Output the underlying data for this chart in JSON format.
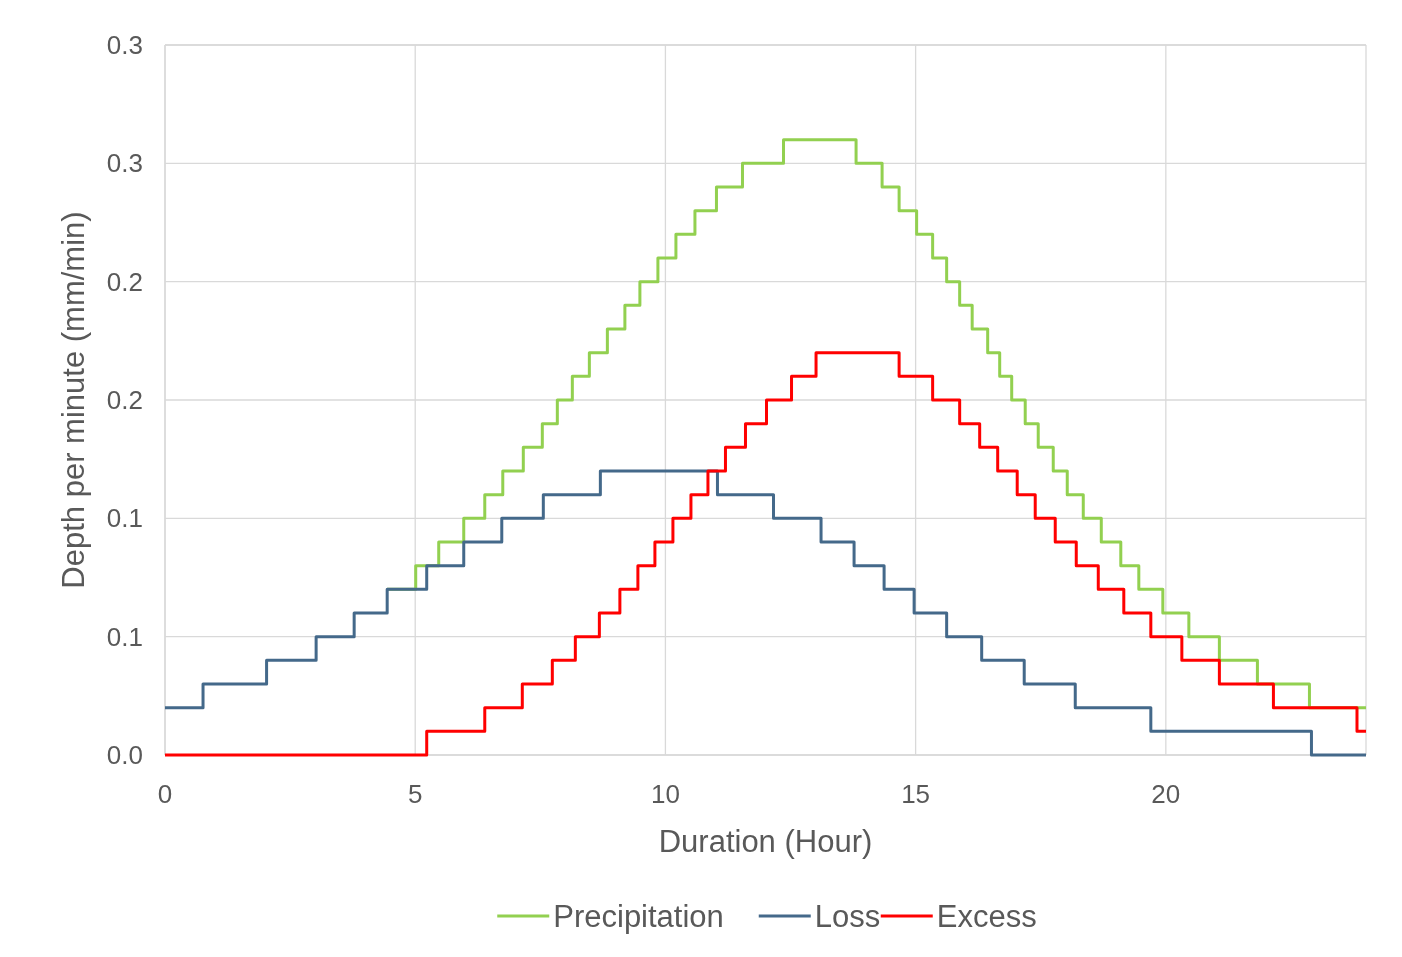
{
  "chart_data": {
    "type": "step",
    "xlabel": "Duration (Hour)",
    "ylabel": "Depth per minute (mm/min)",
    "xlim": [
      0,
      24
    ],
    "xticks": [
      0,
      5,
      10,
      15,
      20
    ],
    "ylim": [
      0,
      0.3
    ],
    "yticks": [
      {
        "value": 0,
        "label": "0.0"
      },
      {
        "value": 0.05,
        "label": "0.1"
      },
      {
        "value": 0.1,
        "label": "0.1"
      },
      {
        "value": 0.15,
        "label": "0.2"
      },
      {
        "value": 0.2,
        "label": "0.2"
      },
      {
        "value": 0.25,
        "label": "0.3"
      },
      {
        "value": 0.3,
        "label": "0.3"
      }
    ],
    "grid": true,
    "legend": "bottom",
    "marker": "none",
    "line_style": "solid",
    "series": [
      {
        "name": "Precipitation",
        "color": "#92d050",
        "x": [
          4.44,
          5.01,
          5.47,
          5.97,
          6.39,
          6.75,
          7.16,
          7.54,
          7.84,
          8.14,
          8.48,
          8.84,
          9.19,
          9.49,
          9.85,
          10.21,
          10.59,
          11.02,
          11.54,
          12.36,
          13.81,
          14.33,
          14.67,
          15.02,
          15.34,
          15.62,
          15.88,
          16.13,
          16.44,
          16.68,
          16.92,
          17.19,
          17.45,
          17.75,
          18.03,
          18.35,
          18.71,
          19.1,
          19.46,
          19.94,
          20.46,
          21.07,
          21.83,
          22.87,
          24
        ],
        "values": [
          0.07,
          0.08,
          0.09,
          0.1,
          0.11,
          0.12,
          0.13,
          0.14,
          0.15,
          0.16,
          0.17,
          0.18,
          0.19,
          0.2,
          0.21,
          0.22,
          0.23,
          0.24,
          0.25,
          0.26,
          0.25,
          0.24,
          0.23,
          0.22,
          0.21,
          0.2,
          0.19,
          0.18,
          0.17,
          0.16,
          0.15,
          0.14,
          0.13,
          0.12,
          0.11,
          0.1,
          0.09,
          0.08,
          0.07,
          0.06,
          0.05,
          0.04,
          0.03,
          0.02,
          0.02
        ]
      },
      {
        "name": "Loss",
        "color": "#44698a",
        "x": [
          0,
          0.76,
          2.03,
          3.02,
          3.78,
          4.44,
          5.23,
          5.97,
          6.73,
          7.56,
          8.7,
          11.04,
          12.16,
          13.11,
          13.77,
          14.37,
          14.97,
          15.62,
          16.32,
          17.17,
          18.19,
          19.7,
          22.91,
          24
        ],
        "values": [
          0.02,
          0.03,
          0.04,
          0.05,
          0.06,
          0.07,
          0.08,
          0.09,
          0.1,
          0.11,
          0.12,
          0.11,
          0.1,
          0.09,
          0.08,
          0.07,
          0.06,
          0.05,
          0.04,
          0.03,
          0.02,
          0.01,
          0,
          0
        ]
      },
      {
        "name": "Excess",
        "color": "#ff0000",
        "x": [
          0,
          5.23,
          6.39,
          7.14,
          7.74,
          8.2,
          8.68,
          9.09,
          9.45,
          9.79,
          10.15,
          10.51,
          10.85,
          11.2,
          11.6,
          12.02,
          12.52,
          13.01,
          14.67,
          15.34,
          15.88,
          16.28,
          16.64,
          17.03,
          17.39,
          17.79,
          18.21,
          18.65,
          19.16,
          19.7,
          20.32,
          21.07,
          22.15,
          23.82,
          24
        ],
        "values": [
          0,
          0.01,
          0.02,
          0.03,
          0.04,
          0.05,
          0.06,
          0.07,
          0.08,
          0.09,
          0.1,
          0.11,
          0.12,
          0.13,
          0.14,
          0.15,
          0.16,
          0.17,
          0.16,
          0.15,
          0.14,
          0.13,
          0.12,
          0.11,
          0.1,
          0.09,
          0.08,
          0.07,
          0.06,
          0.05,
          0.04,
          0.03,
          0.02,
          0.01,
          0.01
        ]
      }
    ]
  }
}
